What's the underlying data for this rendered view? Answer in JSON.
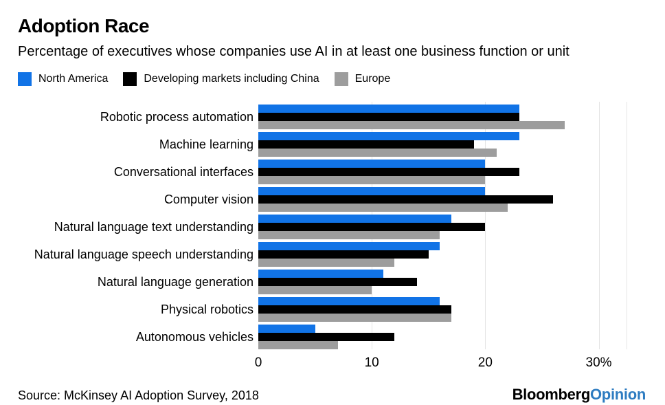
{
  "header": {
    "title": "Adoption Race",
    "subtitle": "Percentage of executives whose companies use AI in at least one business function or unit"
  },
  "chart_data": {
    "type": "bar",
    "orientation": "horizontal",
    "title": "Adoption Race",
    "subtitle": "Percentage of executives whose companies use AI in at least one business function or unit",
    "xlabel": "",
    "ylabel": "",
    "unit": "%",
    "xlim": [
      0,
      30
    ],
    "plot_xmax": 32.45,
    "grid": "vertical-light",
    "legend_position": "top",
    "categories": [
      "Robotic process automation",
      "Machine learning",
      "Conversational interfaces",
      "Computer vision",
      "Natural language text understanding",
      "Natural language speech understanding",
      "Natural language generation",
      "Physical robotics",
      "Autonomous vehicles"
    ],
    "series": [
      {
        "name": "North America",
        "color": "#1173e6",
        "values": [
          23,
          23,
          20,
          20,
          17,
          16,
          11,
          16,
          5
        ]
      },
      {
        "name": "Developing markets including China",
        "color": "#000000",
        "values": [
          23,
          19,
          23,
          26,
          20,
          15,
          14,
          17,
          12
        ]
      },
      {
        "name": "Europe",
        "color": "#9d9d9d",
        "values": [
          27,
          21,
          20,
          22,
          16,
          12,
          10,
          17,
          7
        ]
      }
    ],
    "x_ticks": [
      {
        "value": 0,
        "label": "0"
      },
      {
        "value": 10,
        "label": "10"
      },
      {
        "value": 20,
        "label": "20"
      },
      {
        "value": 30,
        "label": "30%"
      }
    ],
    "gridline_values": [
      10,
      20,
      30,
      32.45
    ],
    "gridline_color": "#e4e4e4"
  },
  "footer": {
    "source": "Source: McKinsey AI Adoption Survey, 2018",
    "logo": {
      "black": "Bloomberg",
      "blue": "Opinion",
      "blue_color": "#2e7cc1"
    }
  }
}
